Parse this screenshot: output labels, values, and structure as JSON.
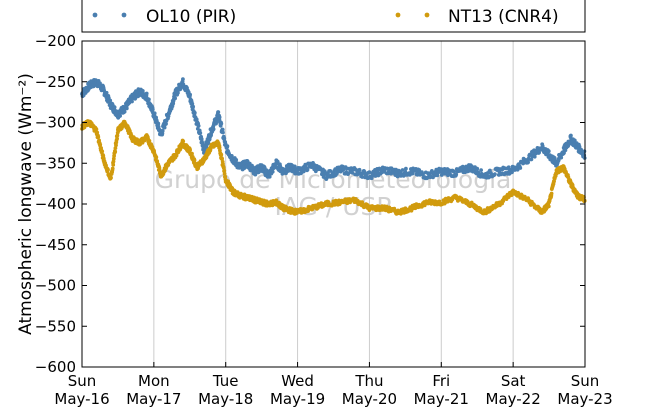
{
  "chart_data": {
    "type": "scatter",
    "ylabel": "Atmospheric longwave (Wm⁻²)",
    "ylim": [
      -600,
      -200
    ],
    "yticks": [
      -200,
      -250,
      -300,
      -350,
      -400,
      -450,
      -500,
      -550,
      -600
    ],
    "xlim": [
      0,
      7
    ],
    "xticks": [
      {
        "day": "Sun",
        "date": "May-16"
      },
      {
        "day": "Mon",
        "date": "May-17"
      },
      {
        "day": "Tue",
        "date": "May-18"
      },
      {
        "day": "Wed",
        "date": "May-19"
      },
      {
        "day": "Thu",
        "date": "May-20"
      },
      {
        "day": "Fri",
        "date": "May-21"
      },
      {
        "day": "Sat",
        "date": "May-22"
      },
      {
        "day": "Sun",
        "date": "May-23"
      }
    ],
    "grid": "vertical",
    "legend_position": "top",
    "series": [
      {
        "name": "OL10 (PIR)",
        "color": "#4a7fb0",
        "x": [
          0.0,
          0.1,
          0.2,
          0.3,
          0.4,
          0.5,
          0.6,
          0.7,
          0.8,
          0.9,
          1.0,
          1.1,
          1.2,
          1.3,
          1.4,
          1.5,
          1.6,
          1.7,
          1.8,
          1.9,
          2.0,
          2.1,
          2.2,
          2.3,
          2.4,
          2.5,
          2.6,
          2.7,
          2.8,
          2.9,
          3.0,
          3.2,
          3.4,
          3.6,
          3.8,
          4.0,
          4.2,
          4.4,
          4.6,
          4.8,
          5.0,
          5.2,
          5.4,
          5.6,
          5.8,
          6.0,
          6.2,
          6.4,
          6.5,
          6.6,
          6.7,
          6.8,
          6.9,
          7.0
        ],
        "y": [
          -265,
          -255,
          -250,
          -260,
          -278,
          -290,
          -282,
          -270,
          -262,
          -268,
          -290,
          -315,
          -290,
          -265,
          -250,
          -268,
          -300,
          -335,
          -310,
          -290,
          -330,
          -345,
          -355,
          -350,
          -360,
          -355,
          -365,
          -350,
          -360,
          -355,
          -360,
          -352,
          -365,
          -358,
          -360,
          -365,
          -358,
          -362,
          -360,
          -365,
          -360,
          -362,
          -355,
          -365,
          -360,
          -358,
          -345,
          -330,
          -340,
          -350,
          -335,
          -320,
          -330,
          -340
        ]
      },
      {
        "name": "NT13 (CNR4)",
        "color": "#d19b0e",
        "x": [
          0.0,
          0.1,
          0.2,
          0.3,
          0.4,
          0.5,
          0.6,
          0.7,
          0.8,
          0.9,
          1.0,
          1.1,
          1.2,
          1.3,
          1.4,
          1.5,
          1.6,
          1.7,
          1.8,
          1.9,
          2.0,
          2.1,
          2.2,
          2.3,
          2.4,
          2.5,
          2.6,
          2.7,
          2.8,
          2.9,
          3.0,
          3.2,
          3.4,
          3.6,
          3.8,
          4.0,
          4.2,
          4.4,
          4.6,
          4.8,
          5.0,
          5.2,
          5.4,
          5.6,
          5.8,
          6.0,
          6.2,
          6.4,
          6.5,
          6.6,
          6.7,
          6.8,
          6.9,
          7.0
        ],
        "y": [
          -305,
          -300,
          -310,
          -345,
          -370,
          -310,
          -300,
          -320,
          -325,
          -318,
          -335,
          -365,
          -350,
          -340,
          -325,
          -335,
          -355,
          -345,
          -330,
          -325,
          -370,
          -385,
          -390,
          -392,
          -395,
          -398,
          -400,
          -398,
          -405,
          -408,
          -410,
          -405,
          -400,
          -398,
          -395,
          -405,
          -405,
          -410,
          -405,
          -398,
          -398,
          -392,
          -400,
          -410,
          -400,
          -385,
          -395,
          -410,
          -400,
          -360,
          -355,
          -375,
          -390,
          -395
        ]
      }
    ],
    "watermark": [
      "Grupo de Micrometeorologia",
      "IAG / USP"
    ]
  }
}
